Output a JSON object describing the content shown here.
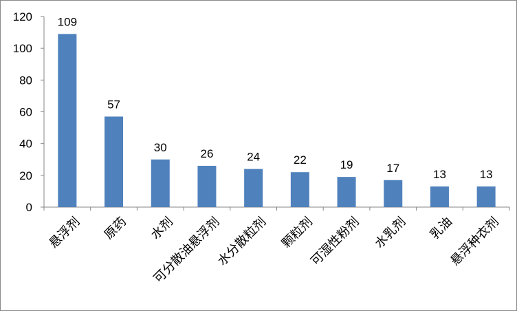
{
  "chart_data": {
    "type": "bar",
    "categories": [
      "悬浮剂",
      "原药",
      "水剂",
      "可分散油悬浮剂",
      "水分散粒剂",
      "颗粒剂",
      "可湿性粉剂",
      "水乳剂",
      "乳油",
      "悬浮种衣剂"
    ],
    "values": [
      109,
      57,
      30,
      26,
      24,
      22,
      19,
      17,
      13,
      13
    ],
    "data_labels": [
      "109",
      "57",
      "30",
      "26",
      "24",
      "22",
      "19",
      "17",
      "13",
      "13"
    ],
    "yticks": [
      "0",
      "20",
      "40",
      "60",
      "80",
      "100",
      "120"
    ],
    "ylim": [
      0,
      120
    ],
    "bar_color": "#4f81bd",
    "grid": false,
    "legend": "none"
  }
}
